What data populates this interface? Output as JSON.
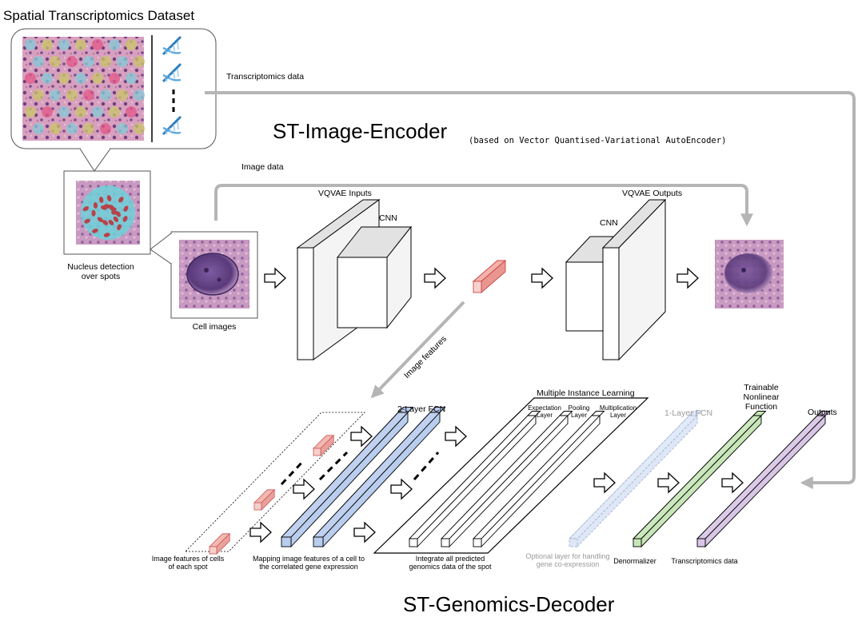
{
  "dataset": {
    "title": "Spatial Transcriptomics Dataset",
    "transcriptomics_link": "Transcriptomics data",
    "nucleus_caption": "Nucleus detection\nover spots"
  },
  "encoder": {
    "title": "ST-Image-Encoder",
    "subtitle": "(based on Vector Quantised-Variational AutoEncoder)",
    "image_data_label": "Image data",
    "cell_images_label": "Cell images",
    "inputs_label": "VQVAE Inputs",
    "cnn_in_label": "CNN",
    "cnn_out_label": "CNN",
    "outputs_label": "VQVAE Outputs",
    "image_features_label": "Image features"
  },
  "decoder": {
    "title": "ST-Genomics-Decoder",
    "fcn2_label": "2-Layer FCN",
    "mil_label": "Multiple Instance Learning",
    "expectation_layer": "Expectation\nLayer",
    "pooling_layer": "Pooling\nLayer",
    "multiplication_layer": "Multiplication\nLayer",
    "fcn1_label": "1-Layer FCN",
    "trainable_label": "Trainable\nNonlinear\nFunction",
    "outputs_label": "Outputs",
    "cap_image_features": "Image features of cells\nof each spot",
    "cap_mapping": "Mapping image features of a cell to\nthe correlated gene expression",
    "cap_integrate": "Integrate all predicted\ngenomics data of the spot",
    "cap_optional": "Optional layer for handling\ngene co-expression",
    "cap_denormalizer": "Denormalizer",
    "cap_transcriptomics": "Transcriptomics data"
  },
  "colors": {
    "feature_red": "#f2b8b2",
    "fcn_blue": "#b9cdee",
    "optional_blue": "#dfe7f7",
    "trainable_green": "#c7e6b8",
    "output_purple": "#d9c6e6",
    "arrow_grey": "#b5b5b5",
    "dna_blue": "#2f7fc1"
  }
}
